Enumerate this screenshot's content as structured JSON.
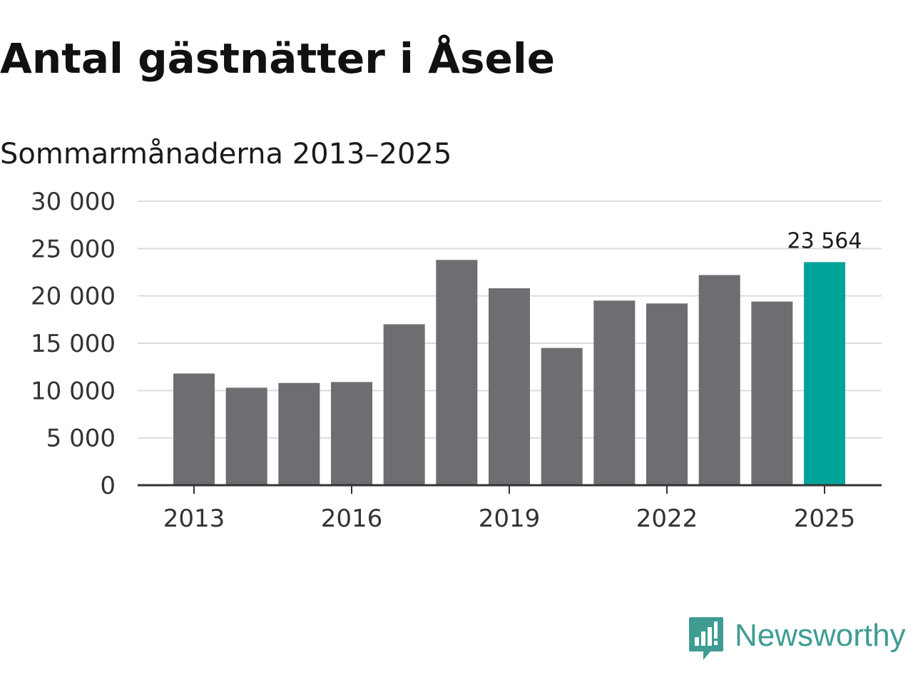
{
  "header": {
    "title": "Antal gästnätter i Åsele",
    "subtitle": "Sommarmånaderna 2013–2025"
  },
  "logo": {
    "text": "Newsworthy",
    "icon": "bar-chart-speech-bubble-icon",
    "color": "#3f9c93"
  },
  "chart_data": {
    "type": "bar",
    "title": "Antal gästnätter i Åsele",
    "subtitle": "Sommarmånaderna 2013–2025",
    "xlabel": "",
    "ylabel": "",
    "categories": [
      "2013",
      "2014",
      "2015",
      "2016",
      "2017",
      "2018",
      "2019",
      "2020",
      "2021",
      "2022",
      "2023",
      "2024",
      "2025"
    ],
    "values": [
      11800,
      10300,
      10800,
      10900,
      17000,
      23800,
      20800,
      14500,
      19500,
      19200,
      22200,
      19400,
      23564
    ],
    "x_tick_labels": [
      "2013",
      "2016",
      "2019",
      "2022",
      "2025"
    ],
    "y_ticks": [
      0,
      5000,
      10000,
      15000,
      20000,
      25000,
      30000
    ],
    "y_tick_labels": [
      "0",
      "5 000",
      "10 000",
      "15 000",
      "20 000",
      "25 000",
      "30 000"
    ],
    "ylim": [
      0,
      30000
    ],
    "grid": true,
    "bar_color": "#6e6d72",
    "highlight_color": "#00a39a",
    "highlight_index": 12,
    "annotations": [
      {
        "category": "2025",
        "text": "23 564"
      }
    ]
  }
}
